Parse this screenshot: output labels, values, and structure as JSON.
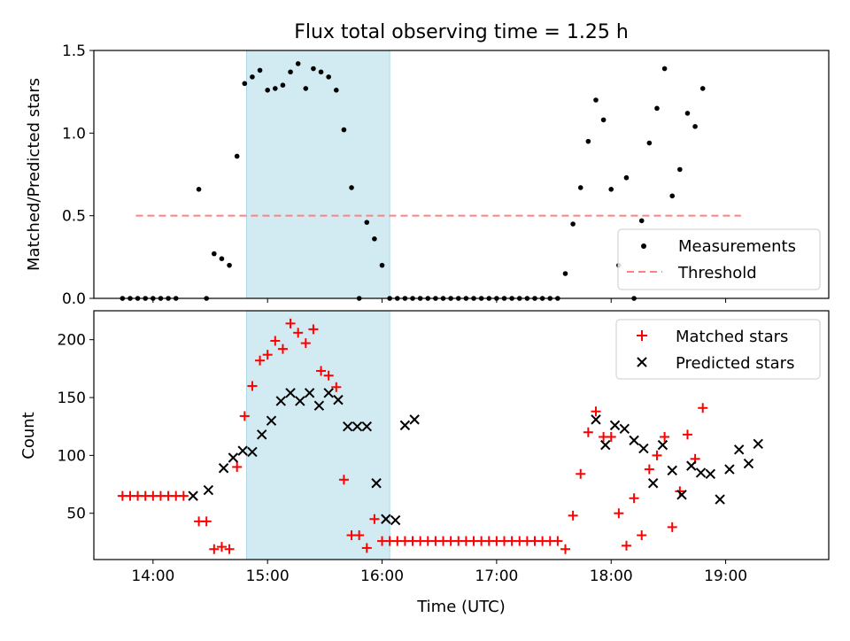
{
  "title": "Flux total observing time = 1.25 h",
  "colors": {
    "highlight": "#add8e6",
    "measurement": "#000000",
    "threshold": "#ff8080",
    "matched": "#ff0000",
    "predicted": "#000000"
  },
  "chart_data": [
    {
      "type": "scatter",
      "ylabel": "Matched/Predicted stars",
      "xlim": [
        "13:29",
        "19:54"
      ],
      "ylim": [
        0,
        1.5
      ],
      "y_ticks": [
        "0.0",
        "0.5",
        "1.0",
        "1.5"
      ],
      "grid": false,
      "legend_position": "lower right",
      "highlight_span": [
        "14:49",
        "16:04"
      ],
      "series": [
        {
          "name": "Measurements",
          "marker": "dot",
          "points": [
            [
              "13:44",
              0.0
            ],
            [
              "13:48",
              0.0
            ],
            [
              "13:52",
              0.0
            ],
            [
              "13:56",
              0.0
            ],
            [
              "14:00",
              0.0
            ],
            [
              "14:04",
              0.0
            ],
            [
              "14:08",
              0.0
            ],
            [
              "14:12",
              0.0
            ],
            [
              "14:24",
              0.66
            ],
            [
              "14:28",
              0.0
            ],
            [
              "14:32",
              0.27
            ],
            [
              "14:36",
              0.24
            ],
            [
              "14:40",
              0.2
            ],
            [
              "14:44",
              0.86
            ],
            [
              "14:48",
              1.3
            ],
            [
              "14:52",
              1.34
            ],
            [
              "14:56",
              1.38
            ],
            [
              "15:00",
              1.26
            ],
            [
              "15:04",
              1.27
            ],
            [
              "15:08",
              1.29
            ],
            [
              "15:12",
              1.37
            ],
            [
              "15:16",
              1.42
            ],
            [
              "15:20",
              1.27
            ],
            [
              "15:24",
              1.39
            ],
            [
              "15:28",
              1.37
            ],
            [
              "15:32",
              1.34
            ],
            [
              "15:36",
              1.26
            ],
            [
              "15:40",
              1.02
            ],
            [
              "15:44",
              0.67
            ],
            [
              "15:48",
              0.0
            ],
            [
              "15:52",
              0.46
            ],
            [
              "15:56",
              0.36
            ],
            [
              "16:00",
              0.2
            ],
            [
              "16:04",
              0.0
            ],
            [
              "16:08",
              0.0
            ],
            [
              "16:12",
              0.0
            ],
            [
              "16:16",
              0.0
            ],
            [
              "16:20",
              0.0
            ],
            [
              "16:24",
              0.0
            ],
            [
              "16:28",
              0.0
            ],
            [
              "16:32",
              0.0
            ],
            [
              "16:36",
              0.0
            ],
            [
              "16:40",
              0.0
            ],
            [
              "16:44",
              0.0
            ],
            [
              "16:48",
              0.0
            ],
            [
              "16:52",
              0.0
            ],
            [
              "16:56",
              0.0
            ],
            [
              "17:00",
              0.0
            ],
            [
              "17:04",
              0.0
            ],
            [
              "17:08",
              0.0
            ],
            [
              "17:12",
              0.0
            ],
            [
              "17:16",
              0.0
            ],
            [
              "17:20",
              0.0
            ],
            [
              "17:24",
              0.0
            ],
            [
              "17:28",
              0.0
            ],
            [
              "17:32",
              0.0
            ],
            [
              "17:36",
              0.15
            ],
            [
              "17:40",
              0.45
            ],
            [
              "17:44",
              0.67
            ],
            [
              "17:48",
              0.95
            ],
            [
              "17:52",
              1.2
            ],
            [
              "17:56",
              1.08
            ],
            [
              "18:00",
              0.66
            ],
            [
              "18:04",
              0.2
            ],
            [
              "18:08",
              0.73
            ],
            [
              "18:12",
              0.0
            ],
            [
              "18:16",
              0.47
            ],
            [
              "18:20",
              0.94
            ],
            [
              "18:24",
              1.15
            ],
            [
              "18:28",
              1.39
            ],
            [
              "18:32",
              0.62
            ],
            [
              "18:36",
              0.78
            ],
            [
              "18:40",
              1.12
            ],
            [
              "18:44",
              1.04
            ],
            [
              "18:48",
              1.27
            ]
          ]
        },
        {
          "name": "Threshold",
          "marker": "dashed-line",
          "points": [
            [
              "13:51",
              0.5
            ],
            [
              "19:08",
              0.5
            ]
          ]
        }
      ]
    },
    {
      "type": "scatter",
      "xlabel": "Time (UTC)",
      "ylabel": "Count",
      "xlim": [
        "13:29",
        "19:54"
      ],
      "ylim": [
        10,
        225
      ],
      "x_ticks": [
        "14:00",
        "15:00",
        "16:00",
        "17:00",
        "18:00",
        "19:00"
      ],
      "y_ticks": [
        "50",
        "100",
        "150",
        "200"
      ],
      "grid": false,
      "legend_position": "upper right",
      "highlight_span": [
        "14:49",
        "16:04"
      ],
      "series": [
        {
          "name": "Matched stars",
          "marker": "plus",
          "points": [
            [
              "13:44",
              65
            ],
            [
              "13:48",
              65
            ],
            [
              "13:52",
              65
            ],
            [
              "13:56",
              65
            ],
            [
              "14:00",
              65
            ],
            [
              "14:04",
              65
            ],
            [
              "14:08",
              65
            ],
            [
              "14:12",
              65
            ],
            [
              "14:16",
              65
            ],
            [
              "14:24",
              43
            ],
            [
              "14:28",
              43
            ],
            [
              "14:32",
              19
            ],
            [
              "14:36",
              21
            ],
            [
              "14:40",
              19
            ],
            [
              "14:44",
              90
            ],
            [
              "14:48",
              134
            ],
            [
              "14:52",
              160
            ],
            [
              "14:56",
              182
            ],
            [
              "15:00",
              187
            ],
            [
              "15:04",
              199
            ],
            [
              "15:08",
              192
            ],
            [
              "15:12",
              214
            ],
            [
              "15:16",
              206
            ],
            [
              "15:20",
              197
            ],
            [
              "15:24",
              209
            ],
            [
              "15:28",
              173
            ],
            [
              "15:32",
              169
            ],
            [
              "15:36",
              159
            ],
            [
              "15:40",
              79
            ],
            [
              "15:44",
              31
            ],
            [
              "15:48",
              31
            ],
            [
              "15:52",
              20
            ],
            [
              "15:56",
              45
            ],
            [
              "16:00",
              26
            ],
            [
              "16:04",
              26
            ],
            [
              "16:08",
              26
            ],
            [
              "16:12",
              26
            ],
            [
              "16:16",
              26
            ],
            [
              "16:20",
              26
            ],
            [
              "16:24",
              26
            ],
            [
              "16:28",
              26
            ],
            [
              "16:32",
              26
            ],
            [
              "16:36",
              26
            ],
            [
              "16:40",
              26
            ],
            [
              "16:44",
              26
            ],
            [
              "16:48",
              26
            ],
            [
              "16:52",
              26
            ],
            [
              "16:56",
              26
            ],
            [
              "17:00",
              26
            ],
            [
              "17:04",
              26
            ],
            [
              "17:08",
              26
            ],
            [
              "17:12",
              26
            ],
            [
              "17:16",
              26
            ],
            [
              "17:20",
              26
            ],
            [
              "17:24",
              26
            ],
            [
              "17:28",
              26
            ],
            [
              "17:32",
              26
            ],
            [
              "17:36",
              19
            ],
            [
              "17:40",
              48
            ],
            [
              "17:44",
              84
            ],
            [
              "17:48",
              120
            ],
            [
              "17:52",
              138
            ],
            [
              "17:56",
              116
            ],
            [
              "18:00",
              116
            ],
            [
              "18:04",
              50
            ],
            [
              "18:08",
              22
            ],
            [
              "18:12",
              63
            ],
            [
              "18:16",
              31
            ],
            [
              "18:20",
              88
            ],
            [
              "18:24",
              100
            ],
            [
              "18:28",
              116
            ],
            [
              "18:32",
              38
            ],
            [
              "18:36",
              69
            ],
            [
              "18:40",
              118
            ],
            [
              "18:44",
              97
            ],
            [
              "18:48",
              141
            ]
          ]
        },
        {
          "name": "Predicted stars",
          "marker": "x",
          "points": [
            [
              "14:21",
              65
            ],
            [
              "14:29",
              70
            ],
            [
              "14:37",
              89
            ],
            [
              "14:42",
              98
            ],
            [
              "14:47",
              104
            ],
            [
              "14:52",
              103
            ],
            [
              "14:57",
              118
            ],
            [
              "15:02",
              130
            ],
            [
              "15:07",
              147
            ],
            [
              "15:12",
              154
            ],
            [
              "15:17",
              147
            ],
            [
              "15:22",
              154
            ],
            [
              "15:27",
              143
            ],
            [
              "15:32",
              154
            ],
            [
              "15:37",
              148
            ],
            [
              "15:42",
              125
            ],
            [
              "15:47",
              125
            ],
            [
              "15:52",
              125
            ],
            [
              "15:57",
              76
            ],
            [
              "16:02",
              45
            ],
            [
              "16:07",
              44
            ],
            [
              "16:12",
              126
            ],
            [
              "16:17",
              131
            ],
            [
              "17:52",
              131
            ],
            [
              "17:57",
              109
            ],
            [
              "18:02",
              126
            ],
            [
              "18:07",
              123
            ],
            [
              "18:12",
              113
            ],
            [
              "18:17",
              106
            ],
            [
              "18:22",
              76
            ],
            [
              "18:27",
              109
            ],
            [
              "18:32",
              87
            ],
            [
              "18:37",
              66
            ],
            [
              "18:42",
              91
            ],
            [
              "18:47",
              85
            ],
            [
              "18:52",
              84
            ],
            [
              "18:57",
              62
            ],
            [
              "19:02",
              88
            ],
            [
              "19:07",
              105
            ],
            [
              "19:12",
              93
            ],
            [
              "19:17",
              110
            ]
          ]
        }
      ]
    }
  ]
}
